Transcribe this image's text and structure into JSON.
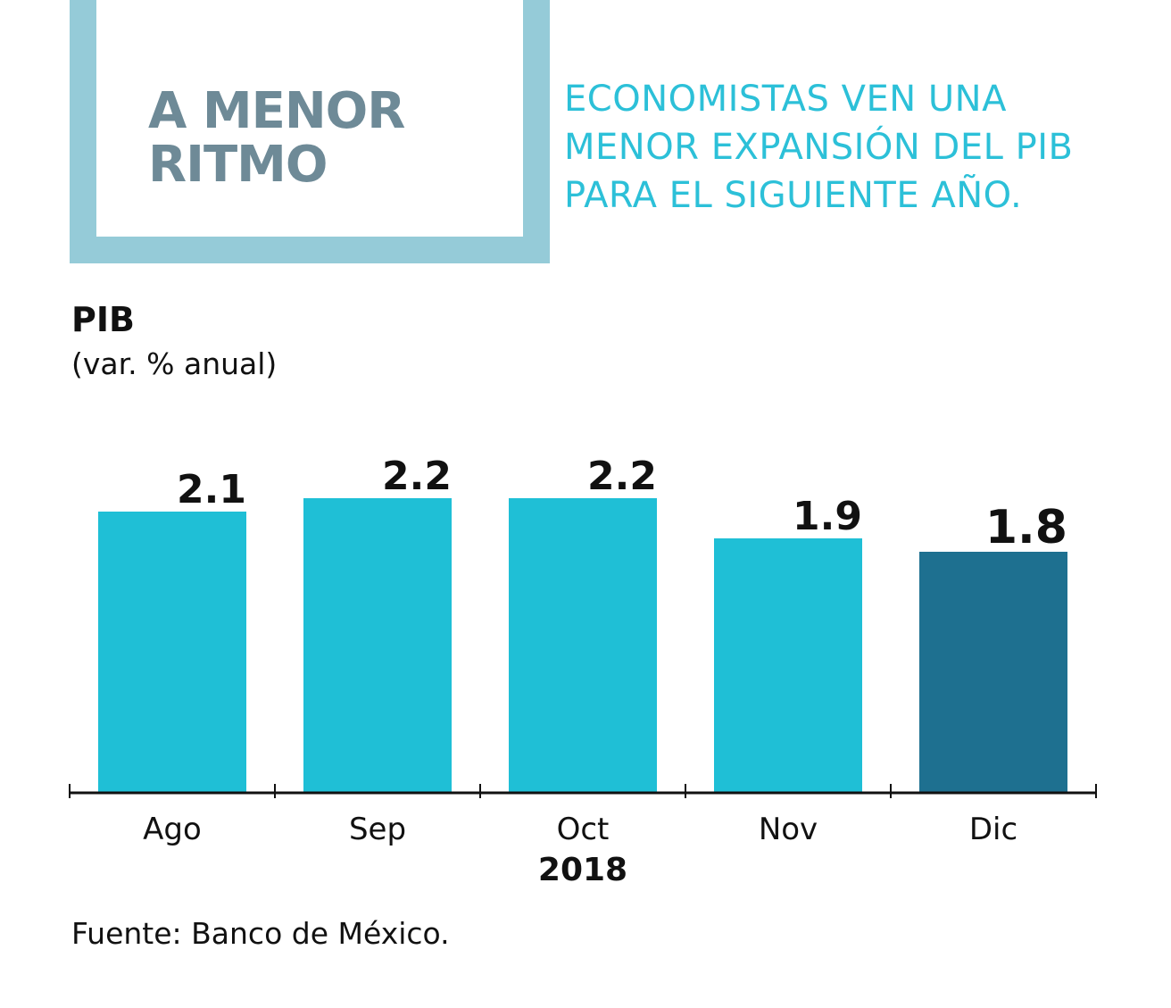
{
  "header": {
    "title": "A MENOR RITMO",
    "subtitle": "ECONOMISTAS VEN UNA MENOR EXPANSIÓN DEL PIB PARA EL SIGUIENTE AÑO."
  },
  "chart_data": {
    "type": "bar",
    "title": "PIB",
    "ylabel": "(var. % anual)",
    "categories": [
      "Ago",
      "Sep",
      "Oct",
      "Nov",
      "Dic"
    ],
    "values": [
      2.1,
      2.2,
      2.2,
      1.9,
      1.8
    ],
    "x_group_label": "2018",
    "colors": [
      "#1fbfd6",
      "#1fbfd6",
      "#1fbfd6",
      "#1fbfd6",
      "#1e7090"
    ],
    "ylim": [
      0,
      2.6
    ],
    "grid": false,
    "legend": "none"
  },
  "footer": {
    "source": "Fuente: Banco de México."
  }
}
